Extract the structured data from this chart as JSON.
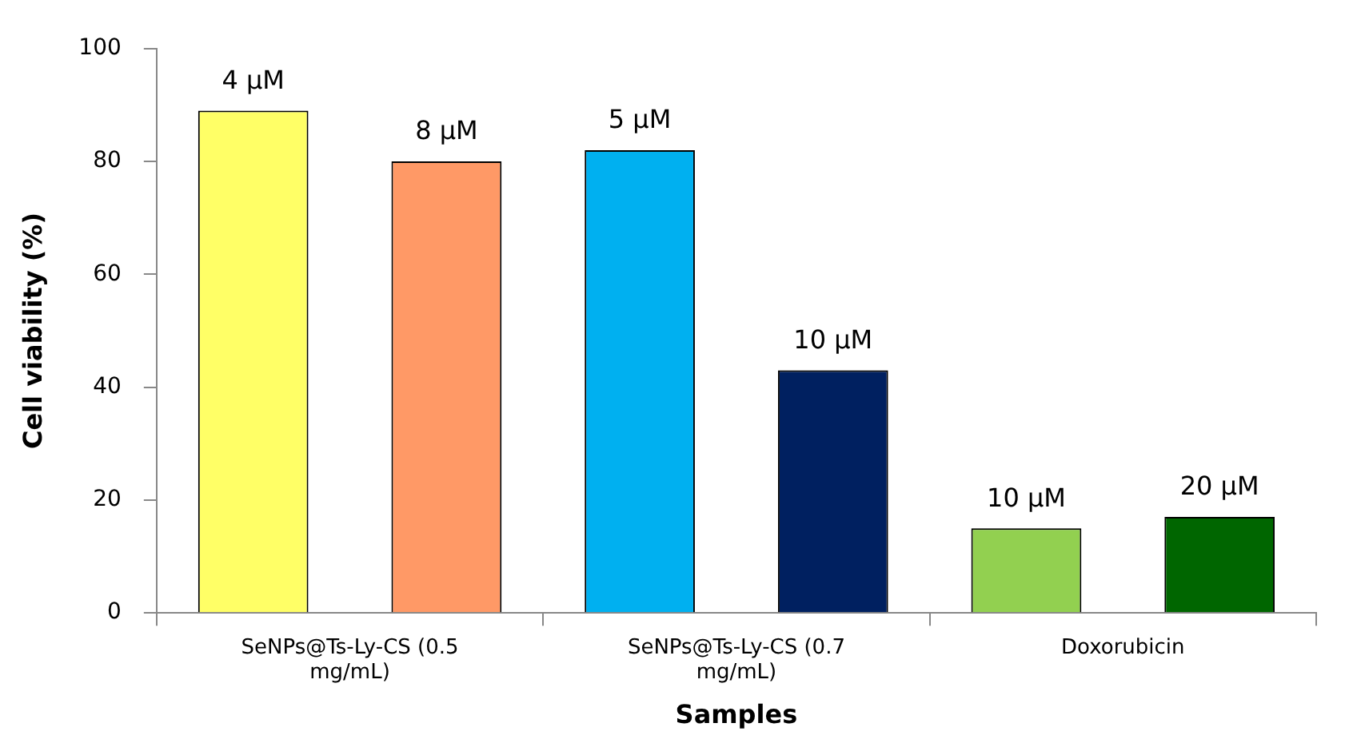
{
  "chart_data": {
    "type": "bar",
    "xlabel": "Samples",
    "ylabel": "Cell viability (%)",
    "categories": [
      "SeNPs@Ts-Ly-CS (0.5 mg/mL)",
      "SeNPs@Ts-Ly-CS (0.7 mg/mL)",
      "Doxorubicin"
    ],
    "series": [
      {
        "colors": [
          "#ffff66",
          "#00b0f0",
          "#92d050"
        ],
        "values": [
          89,
          82,
          15
        ]
      },
      {
        "colors": [
          "#ff9966",
          "#002060",
          "#006600"
        ],
        "values": [
          80,
          43,
          17
        ]
      }
    ],
    "annotations": [
      "4 μM",
      "8 μM",
      "5 μM",
      "10 μM",
      "10 μM",
      "20 μM"
    ],
    "ylim": [
      0,
      100
    ],
    "yticks": [
      0,
      20,
      40,
      60,
      80,
      100
    ],
    "grid": false,
    "legend": false
  }
}
